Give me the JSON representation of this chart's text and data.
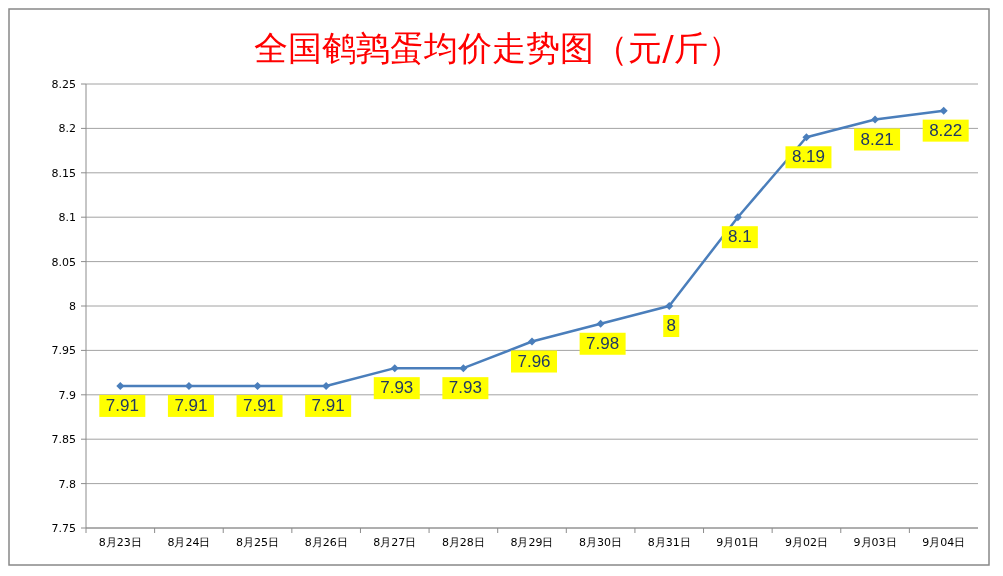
{
  "chart_data": {
    "type": "line",
    "title": "全国鹌鹑蛋均价走势图（元/斤）",
    "categories": [
      "8月23日",
      "8月24日",
      "8月25日",
      "8月26日",
      "8月27日",
      "8月28日",
      "8月29日",
      "8月30日",
      "8月31日",
      "9月01日",
      "9月02日",
      "9月03日",
      "9月04日"
    ],
    "series": [
      {
        "color": "#4a7ebb",
        "values": [
          7.91,
          7.91,
          7.91,
          7.91,
          7.93,
          7.93,
          7.96,
          7.98,
          8,
          8.1,
          8.19,
          8.21,
          8.22
        ]
      }
    ],
    "ylim": [
      7.75,
      8.25
    ],
    "yticks": [
      7.75,
      7.8,
      7.85,
      7.9,
      7.95,
      8,
      8.05,
      8.1,
      8.15,
      8.2,
      8.25
    ],
    "grid": "y",
    "marker": "diamond",
    "line_style": "solid",
    "data_labels": true
  }
}
